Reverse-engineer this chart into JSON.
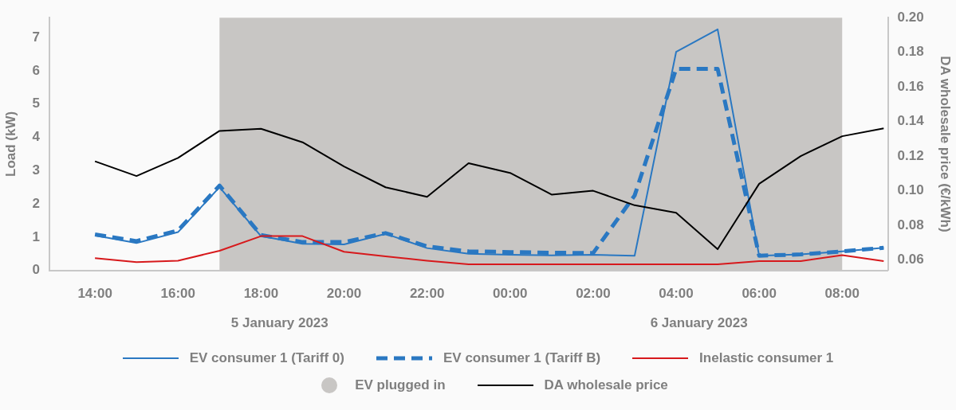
{
  "chart_data": {
    "type": "line",
    "ylabel": "Load (kW)",
    "y2label": "DA wholesale price (€/kWh)",
    "x": [
      "2023-01-05T14:00",
      "2023-01-05T15:00",
      "2023-01-05T16:00",
      "2023-01-05T17:00",
      "2023-01-05T18:00",
      "2023-01-05T19:00",
      "2023-01-05T20:00",
      "2023-01-05T21:00",
      "2023-01-05T22:00",
      "2023-01-05T23:00",
      "2023-01-06T00:00",
      "2023-01-06T01:00",
      "2023-01-06T02:00",
      "2023-01-06T03:00",
      "2023-01-06T04:00",
      "2023-01-06T05:00",
      "2023-01-06T06:00",
      "2023-01-06T07:00",
      "2023-01-06T08:00",
      "2023-01-06T09:00"
    ],
    "xlim": [
      "2023-01-05T12:54",
      "2023-01-06T09:06"
    ],
    "xticks": [
      {
        "value": "2023-01-05T14:00",
        "label": "14:00"
      },
      {
        "value": "2023-01-05T16:00",
        "label": "16:00"
      },
      {
        "value": "2023-01-05T18:00",
        "label": "18:00"
      },
      {
        "value": "2023-01-05T20:00",
        "label": "20:00"
      },
      {
        "value": "2023-01-05T22:00",
        "label": "22:00"
      },
      {
        "value": "2023-01-06T00:00",
        "label": "00:00"
      },
      {
        "value": "2023-01-06T02:00",
        "label": "02:00"
      },
      {
        "value": "2023-01-06T04:00",
        "label": "04:00"
      },
      {
        "value": "2023-01-06T06:00",
        "label": "06:00"
      },
      {
        "value": "2023-01-06T08:00",
        "label": "08:00"
      }
    ],
    "ylim": [
      0,
      7.6
    ],
    "yticks": [
      0,
      1,
      2,
      3,
      4,
      5,
      6,
      7
    ],
    "y2lim": [
      0.054,
      0.2
    ],
    "y2ticks": [
      {
        "value": 0.06,
        "label": "0.06"
      },
      {
        "value": 0.08,
        "label": "0.08"
      },
      {
        "value": 0.1,
        "label": "0.10"
      },
      {
        "value": 0.12,
        "label": "0.12"
      },
      {
        "value": 0.14,
        "label": "0.14"
      },
      {
        "value": 0.16,
        "label": "0.16"
      },
      {
        "value": 0.18,
        "label": "0.18"
      },
      {
        "value": 0.2,
        "label": "0.20"
      }
    ],
    "series": [
      {
        "name": "EV consumer 1 (Tariff 0)",
        "color": "#2a78c2",
        "line_style": "solid",
        "values": [
          1.05,
          0.82,
          1.15,
          2.5,
          1.03,
          0.8,
          0.78,
          1.1,
          0.67,
          0.5,
          0.47,
          0.45,
          0.47,
          0.44,
          6.57,
          7.25,
          0.44,
          0.48,
          0.57,
          0.68
        ]
      },
      {
        "name": "EV consumer 1 (Tariff B)",
        "color": "#2a78c2",
        "line_style": "dashed",
        "values": [
          1.08,
          0.88,
          1.2,
          2.55,
          1.06,
          0.85,
          0.85,
          1.12,
          0.72,
          0.57,
          0.55,
          0.53,
          0.52,
          2.25,
          6.06,
          6.06,
          0.44,
          0.48,
          0.57,
          0.68
        ]
      },
      {
        "name": "Inelastic consumer 1",
        "color": "#d7191c",
        "line_style": "solid",
        "values": [
          0.37,
          0.25,
          0.29,
          0.59,
          1.03,
          1.03,
          0.56,
          0.42,
          0.29,
          0.18,
          0.18,
          0.18,
          0.18,
          0.18,
          0.18,
          0.18,
          0.28,
          0.28,
          0.46,
          0.28
        ]
      },
      {
        "name": "DA wholesale price",
        "color": "#000000",
        "line_style": "solid",
        "axis": "y2",
        "values": [
          0.117,
          0.1085,
          0.119,
          0.1346,
          0.1358,
          0.128,
          0.114,
          0.102,
          0.0965,
          0.1159,
          0.1103,
          0.0978,
          0.1,
          0.0916,
          0.0873,
          0.0662,
          0.104,
          0.12,
          0.1315,
          0.136
        ]
      }
    ],
    "bands": [
      {
        "axis": "x",
        "from": "2023-01-05T17:00",
        "to": "2023-01-06T08:00",
        "label": "EV plugged in",
        "color": "#c8c6c4"
      }
    ],
    "annotations": [
      "5 January 2023",
      "6 January 2023"
    ],
    "grid": false,
    "legend": "bottom",
    "marker": "none"
  }
}
